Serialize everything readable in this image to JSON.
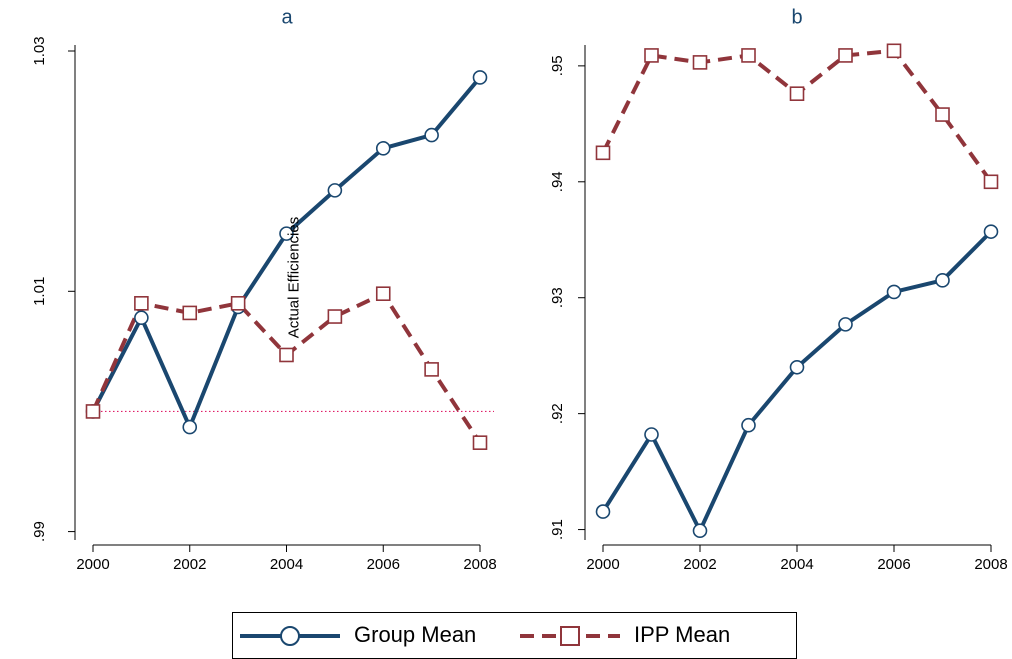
{
  "chart_data": [
    {
      "type": "line",
      "title": "a",
      "y_label": "Actual Efficiencies",
      "x": [
        2000,
        2001,
        2002,
        2003,
        2004,
        2005,
        2006,
        2007,
        2008
      ],
      "series": [
        {
          "name": "Group Mean",
          "color": "#1a476f",
          "marker": "circle",
          "dash": "solid",
          "values": [
            1.0,
            1.0078,
            0.9987,
            1.0087,
            1.0148,
            1.0184,
            1.0219,
            1.023,
            1.0278
          ]
        },
        {
          "name": "IPP Mean",
          "color": "#90353b",
          "marker": "square",
          "dash": "dashed",
          "values": [
            1.0,
            1.009,
            1.0082,
            1.009,
            1.0047,
            1.0079,
            1.0098,
            1.0035,
            0.9974
          ]
        }
      ],
      "xlim": [
        2000,
        2008
      ],
      "xticks": [
        2000,
        2002,
        2004,
        2006,
        2008
      ],
      "ylim": [
        0.9893,
        1.0305
      ],
      "yticks": [
        {
          "value": 0.99,
          "label": ".99"
        },
        1.01,
        1.03
      ],
      "hline": 1.0,
      "hline_color": "#e0206a"
    },
    {
      "type": "line",
      "title": "b",
      "x": [
        2000,
        2001,
        2002,
        2003,
        2004,
        2005,
        2006,
        2007,
        2008
      ],
      "series": [
        {
          "name": "Group Mean",
          "color": "#1a476f",
          "marker": "circle",
          "dash": "solid",
          "values": [
            0.91155,
            0.9182,
            0.9099,
            0.919,
            0.924,
            0.9277,
            0.9305,
            0.9315,
            0.9357
          ]
        },
        {
          "name": "IPP Mean",
          "color": "#90353b",
          "marker": "square",
          "dash": "dashed",
          "values": [
            0.9425,
            0.9509,
            0.9503,
            0.9509,
            0.9476,
            0.9509,
            0.9513,
            0.9458,
            0.94
          ]
        }
      ],
      "xlim": [
        2000,
        2008
      ],
      "xticks": [
        2000,
        2002,
        2004,
        2006,
        2008
      ],
      "ylim": [
        0.9091,
        0.9518
      ],
      "yticks": [
        {
          "value": 0.91,
          "label": ".91"
        },
        {
          "value": 0.92,
          "label": ".92"
        },
        {
          "value": 0.93,
          "label": ".93"
        },
        {
          "value": 0.94,
          "label": ".94"
        },
        {
          "value": 0.95,
          "label": ".95"
        }
      ]
    }
  ]
}
